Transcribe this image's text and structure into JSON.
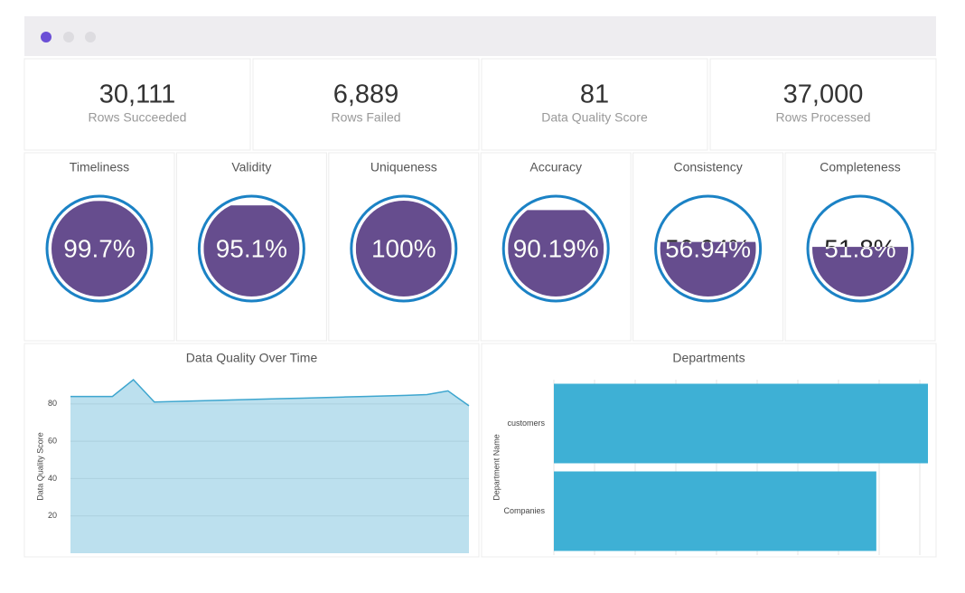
{
  "kpis": [
    {
      "value": "30,111",
      "label": "Rows Succeeded"
    },
    {
      "value": "6,889",
      "label": "Rows Failed"
    },
    {
      "value": "81",
      "label": "Data Quality Score"
    },
    {
      "value": "37,000",
      "label": "Rows Processed"
    }
  ],
  "gauges": [
    {
      "title": "Timeliness",
      "value": 99.7,
      "value_label": "99.7%"
    },
    {
      "title": "Validity",
      "value": 95.1,
      "value_label": "95.1%"
    },
    {
      "title": "Uniqueness",
      "value": 100,
      "value_label": "100%"
    },
    {
      "title": "Accuracy",
      "value": 90.19,
      "value_label": "90.19%"
    },
    {
      "title": "Consistency",
      "value": 56.94,
      "value_label": "56.94%"
    },
    {
      "title": "Completeness",
      "value": 51.8,
      "value_label": "51.8%"
    }
  ],
  "chart_data": [
    {
      "type": "area",
      "title": "Data Quality Over Time",
      "y_label": "Data Quality Score",
      "categories": [
        null,
        null,
        null,
        null,
        null,
        null,
        null,
        null,
        null,
        null,
        null,
        null,
        null,
        null,
        null,
        null,
        null,
        null,
        null,
        null
      ],
      "values": [
        84,
        84,
        84,
        93,
        81,
        81.3,
        81.6,
        81.9,
        82.2,
        82.5,
        82.8,
        83.1,
        83.4,
        83.7,
        84,
        84.3,
        84.6,
        85,
        87,
        79
      ],
      "color": "#3ea6cf",
      "ylim": [
        0,
        93
      ],
      "yticks": [
        20,
        40,
        60,
        80
      ],
      "grid": true
    },
    {
      "type": "bar",
      "orientation": "horizontal",
      "title": "Departments",
      "y_label": "Department Name",
      "categories": [
        "customers",
        "Companies"
      ],
      "values": [
        9.2,
        7.93
      ],
      "xlim": [
        0,
        9.2
      ],
      "color": "#3eb0d5",
      "grid": true
    }
  ]
}
